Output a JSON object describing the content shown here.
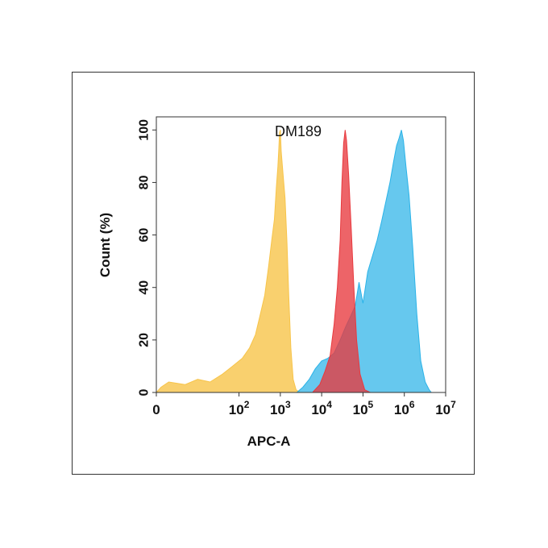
{
  "chart_data": {
    "type": "area",
    "title": "DM189",
    "xlabel": "APC-A",
    "ylabel": "Count  (%)",
    "x_scale": "log",
    "xlim": [
      1,
      10000000
    ],
    "ylim": [
      0,
      105
    ],
    "x_ticks": [
      {
        "value": 1,
        "base": "0",
        "exp": ""
      },
      {
        "value": 100,
        "base": "10",
        "exp": "2"
      },
      {
        "value": 1000,
        "base": "10",
        "exp": "3"
      },
      {
        "value": 10000,
        "base": "10",
        "exp": "4"
      },
      {
        "value": 100000,
        "base": "10",
        "exp": "5"
      },
      {
        "value": 1000000,
        "base": "10",
        "exp": "6"
      },
      {
        "value": 10000000,
        "base": "10",
        "exp": "7"
      }
    ],
    "y_ticks": [
      {
        "value": 0,
        "label": "0"
      },
      {
        "value": 20,
        "label": "20"
      },
      {
        "value": 40,
        "label": "40"
      },
      {
        "value": 60,
        "label": "60"
      },
      {
        "value": 80,
        "label": "80"
      },
      {
        "value": 100,
        "label": "100"
      }
    ],
    "grid": false,
    "series": [
      {
        "color": "#f7c44a",
        "opacity": 0.8,
        "points": [
          [
            1,
            0
          ],
          [
            1.3,
            2
          ],
          [
            2,
            4
          ],
          [
            5,
            3
          ],
          [
            10,
            5
          ],
          [
            20,
            4
          ],
          [
            40,
            7
          ],
          [
            70,
            10
          ],
          [
            120,
            13
          ],
          [
            180,
            17
          ],
          [
            250,
            22
          ],
          [
            330,
            30
          ],
          [
            420,
            37
          ],
          [
            520,
            48
          ],
          [
            620,
            58
          ],
          [
            720,
            66
          ],
          [
            800,
            78
          ],
          [
            870,
            86
          ],
          [
            920,
            93
          ],
          [
            960,
            99
          ],
          [
            1000,
            100
          ],
          [
            1050,
            92
          ],
          [
            1150,
            84
          ],
          [
            1300,
            74
          ],
          [
            1450,
            57
          ],
          [
            1600,
            37
          ],
          [
            1800,
            17
          ],
          [
            2050,
            5
          ],
          [
            2400,
            1
          ],
          [
            3000,
            0
          ]
        ]
      },
      {
        "color": "#2bb3e8",
        "opacity": 0.72,
        "points": [
          [
            2500,
            0
          ],
          [
            3500,
            2
          ],
          [
            5000,
            5
          ],
          [
            7000,
            9
          ],
          [
            10000,
            12
          ],
          [
            14000,
            13
          ],
          [
            20000,
            15
          ],
          [
            28000,
            20
          ],
          [
            38000,
            25
          ],
          [
            50000,
            29
          ],
          [
            65000,
            33
          ],
          [
            80000,
            42
          ],
          [
            100000,
            34
          ],
          [
            130000,
            46
          ],
          [
            170000,
            52
          ],
          [
            220000,
            58
          ],
          [
            280000,
            65
          ],
          [
            360000,
            73
          ],
          [
            450000,
            80
          ],
          [
            550000,
            88
          ],
          [
            650000,
            94
          ],
          [
            750000,
            97
          ],
          [
            850000,
            100
          ],
          [
            950000,
            96
          ],
          [
            1100000,
            86
          ],
          [
            1300000,
            75
          ],
          [
            1600000,
            55
          ],
          [
            2000000,
            30
          ],
          [
            2500000,
            12
          ],
          [
            3200000,
            4
          ],
          [
            4000000,
            1
          ],
          [
            4500000,
            0
          ]
        ]
      },
      {
        "color": "#e8393e",
        "opacity": 0.78,
        "points": [
          [
            6000,
            0
          ],
          [
            9000,
            3
          ],
          [
            12000,
            8
          ],
          [
            16000,
            14
          ],
          [
            20000,
            26
          ],
          [
            24000,
            40
          ],
          [
            28000,
            58
          ],
          [
            31000,
            80
          ],
          [
            34000,
            95
          ],
          [
            37000,
            100
          ],
          [
            40000,
            96
          ],
          [
            45000,
            83
          ],
          [
            52000,
            62
          ],
          [
            60000,
            40
          ],
          [
            70000,
            20
          ],
          [
            85000,
            7
          ],
          [
            110000,
            1
          ],
          [
            150000,
            0
          ]
        ]
      }
    ]
  }
}
